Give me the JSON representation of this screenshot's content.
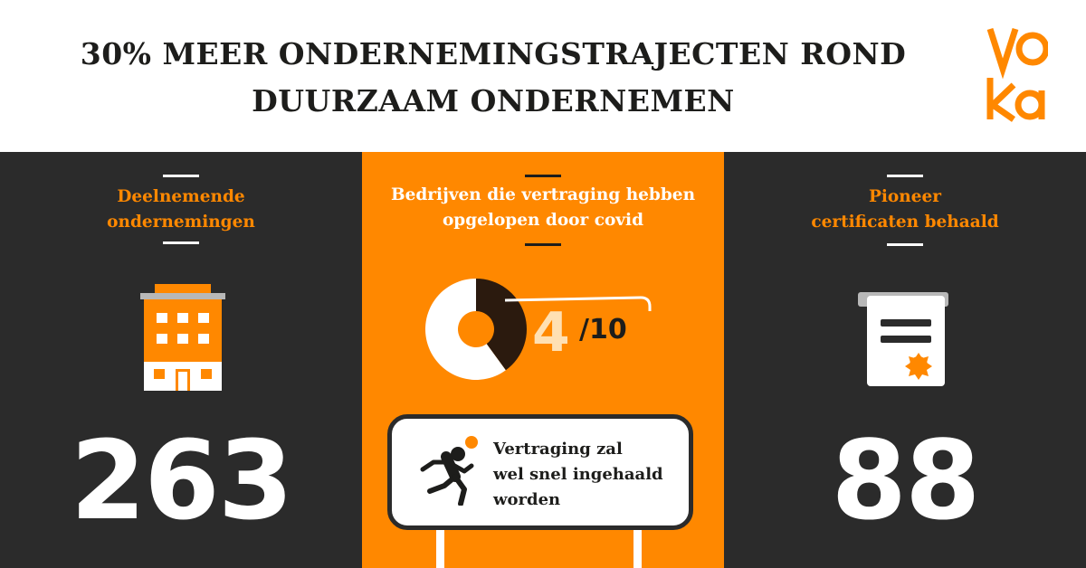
{
  "headline": {
    "line1": "30% MEER ONDERNEMINGSTRAJECTEN ROND",
    "line2": "DUURZAAM ONDERNEMEN"
  },
  "logo": {
    "text": "voka",
    "color": "#ff8800"
  },
  "colors": {
    "accent": "#ff8800",
    "dark": "#2b2b2b",
    "ink": "#1d1d1b",
    "light_orange": "#ffe0b3"
  },
  "panels": {
    "left": {
      "title_line1": "Deelnemende",
      "title_line2": "ondernemingen",
      "icon": "office-building-icon",
      "value": "263"
    },
    "middle": {
      "title_line1": "Bedrijven die vertraging hebben",
      "title_line2": "opgelopen door covid",
      "donut_fraction": 0.4,
      "fraction_numerator": "4",
      "fraction_denominator": "/10",
      "sign": {
        "icon": "running-person-icon",
        "line1": "Vertraging zal",
        "line2": "wel snel ingehaald",
        "line3": "worden"
      }
    },
    "right": {
      "title_line1": "Pioneer",
      "title_line2": "certificaten behaald",
      "icon": "certificate-icon",
      "value": "88"
    }
  }
}
